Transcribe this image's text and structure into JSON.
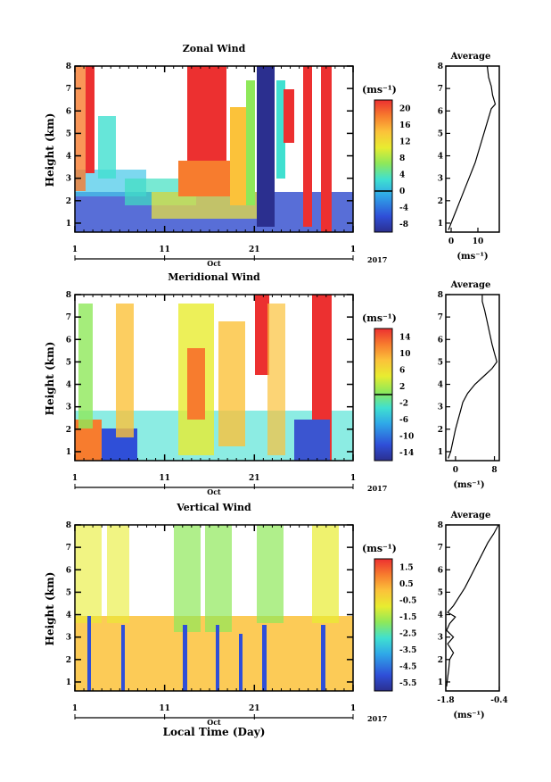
{
  "figure": {
    "xlabel": "Local Time (Day)",
    "avg_title": "Average",
    "unit_label": "(ms⁻¹)"
  },
  "chart_data": [
    {
      "type": "heatmap",
      "title": "Zonal Wind",
      "ylabel": "Height (km)",
      "x_ticks": [
        "1",
        "11",
        "21",
        "1"
      ],
      "month_label": "Oct",
      "year_label": "2017",
      "ylim": [
        0.6,
        8
      ],
      "y_ticks": [
        "1",
        "2",
        "3",
        "4",
        "5",
        "6",
        "7",
        "8"
      ],
      "colorbar": {
        "unit": "(ms⁻¹)",
        "range": [
          -10,
          22
        ],
        "zero_line": 0,
        "ticks": [
          "20",
          "16",
          "12",
          "8",
          "4",
          "0",
          "-4",
          "-8"
        ]
      },
      "average_profile": {
        "title": "Average",
        "xlim": [
          -2,
          18
        ],
        "x_ticks": [
          "0",
          "10"
        ],
        "xlabel": "(ms⁻¹)",
        "points": [
          [
            -1,
            0.7
          ],
          [
            0,
            1.0
          ],
          [
            1,
            1.3
          ],
          [
            2,
            1.6
          ],
          [
            3,
            1.9
          ],
          [
            4,
            2.2
          ],
          [
            5,
            2.5
          ],
          [
            6,
            2.8
          ],
          [
            7,
            3.1
          ],
          [
            8,
            3.4
          ],
          [
            9,
            3.7
          ],
          [
            10,
            4.1
          ],
          [
            11,
            4.5
          ],
          [
            12,
            4.9
          ],
          [
            13,
            5.3
          ],
          [
            14,
            5.7
          ],
          [
            15,
            6.1
          ],
          [
            16.5,
            6.3
          ],
          [
            15.5,
            6.7
          ],
          [
            15,
            7.1
          ],
          [
            14,
            7.5
          ],
          [
            13.5,
            8.0
          ]
        ]
      }
    },
    {
      "type": "heatmap",
      "title": "Meridional Wind",
      "ylabel": "Height (km)",
      "x_ticks": [
        "1",
        "11",
        "21",
        "1"
      ],
      "month_label": "Oct",
      "year_label": "2017",
      "ylim": [
        0.6,
        8
      ],
      "y_ticks": [
        "1",
        "2",
        "3",
        "4",
        "5",
        "6",
        "7",
        "8"
      ],
      "colorbar": {
        "unit": "(ms⁻¹)",
        "range": [
          -16,
          16
        ],
        "zero_line": 0,
        "ticks": [
          "14",
          "10",
          "6",
          "2",
          "-2",
          "-6",
          "-10",
          "-14"
        ]
      },
      "average_profile": {
        "title": "Average",
        "xlim": [
          -2,
          9
        ],
        "x_ticks": [
          "0",
          "8"
        ],
        "xlabel": "(ms⁻¹)",
        "points": [
          [
            -1.5,
            0.7
          ],
          [
            -1,
            1.0
          ],
          [
            -0.5,
            1.5
          ],
          [
            0,
            2.0
          ],
          [
            0.5,
            2.4
          ],
          [
            1,
            2.8
          ],
          [
            1.5,
            3.2
          ],
          [
            2.5,
            3.6
          ],
          [
            4,
            4.0
          ],
          [
            6,
            4.4
          ],
          [
            7.5,
            4.7
          ],
          [
            8.5,
            5.0
          ],
          [
            8,
            5.4
          ],
          [
            7.5,
            5.8
          ],
          [
            7,
            6.3
          ],
          [
            6.5,
            6.8
          ],
          [
            6,
            7.3
          ],
          [
            5.5,
            7.7
          ],
          [
            5.5,
            8.0
          ]
        ]
      }
    },
    {
      "type": "heatmap",
      "title": "Vertical Wind",
      "ylabel": "Height (km)",
      "x_ticks": [
        "1",
        "11",
        "21",
        "1"
      ],
      "month_label": "Oct",
      "year_label": "2017",
      "ylim": [
        0.6,
        8
      ],
      "y_ticks": [
        "1",
        "2",
        "3",
        "4",
        "5",
        "6",
        "7",
        "8"
      ],
      "colorbar": {
        "unit": "(ms⁻¹)",
        "range": [
          -6,
          2
        ],
        "ticks": [
          "1.5",
          "0.5",
          "-0.5",
          "-1.5",
          "-2.5",
          "-3.5",
          "-4.5",
          "-5.5"
        ]
      },
      "average_profile": {
        "title": "Average",
        "xlim": [
          -1.8,
          -0.4
        ],
        "x_ticks": [
          "-1.8",
          "-0.4"
        ],
        "xlabel": "(ms⁻¹)",
        "points": [
          [
            -1.78,
            0.8
          ],
          [
            -1.75,
            1.2
          ],
          [
            -1.72,
            1.6
          ],
          [
            -1.7,
            2.0
          ],
          [
            -1.6,
            2.3
          ],
          [
            -1.75,
            2.7
          ],
          [
            -1.6,
            3.0
          ],
          [
            -1.78,
            3.3
          ],
          [
            -1.7,
            3.6
          ],
          [
            -1.55,
            3.9
          ],
          [
            -1.75,
            4.1
          ],
          [
            -1.6,
            4.4
          ],
          [
            -1.45,
            4.8
          ],
          [
            -1.3,
            5.2
          ],
          [
            -1.15,
            5.7
          ],
          [
            -1.0,
            6.2
          ],
          [
            -0.85,
            6.7
          ],
          [
            -0.7,
            7.2
          ],
          [
            -0.55,
            7.6
          ],
          [
            -0.42,
            8.0
          ]
        ]
      }
    }
  ]
}
